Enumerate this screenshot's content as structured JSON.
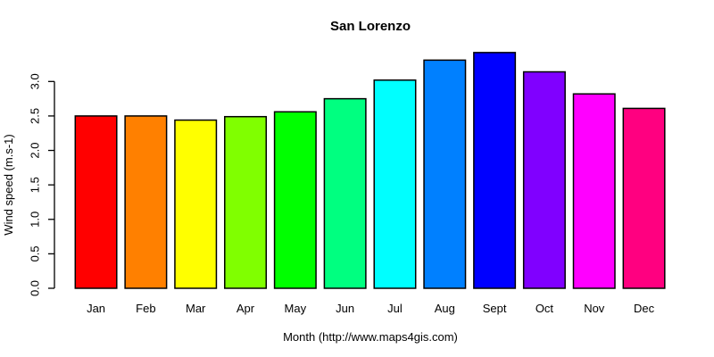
{
  "page": {
    "background": "#ffffff",
    "axis_color": "#000000",
    "text_color": "#000000"
  },
  "chart_data": {
    "type": "bar",
    "title": "San Lorenzo",
    "xlabel": "Month (http://www.maps4gis.com)",
    "ylabel": "Wind speed (m.s-1)",
    "categories": [
      "Jan",
      "Feb",
      "Mar",
      "Apr",
      "May",
      "Jun",
      "Jul",
      "Aug",
      "Sept",
      "Oct",
      "Nov",
      "Dec"
    ],
    "values": [
      2.5,
      2.5,
      2.44,
      2.49,
      2.56,
      2.75,
      3.02,
      3.31,
      3.42,
      3.14,
      2.82,
      2.61
    ],
    "bar_colors": [
      "#FF0000",
      "#FF8000",
      "#FFFF00",
      "#80FF00",
      "#00FF00",
      "#00FF80",
      "#00FFFF",
      "#0080FF",
      "#0000FF",
      "#8000FF",
      "#FF00FF",
      "#FF0080"
    ],
    "bar_border_color": "#000000",
    "yticks": [
      0.0,
      0.5,
      1.0,
      1.5,
      2.0,
      2.5,
      3.0
    ],
    "ytick_labels": [
      "0.0",
      "0.5",
      "1.0",
      "1.5",
      "2.0",
      "2.5",
      "3.0"
    ],
    "ylim": [
      0.0,
      3.45
    ],
    "grid": false,
    "legend": "none"
  }
}
